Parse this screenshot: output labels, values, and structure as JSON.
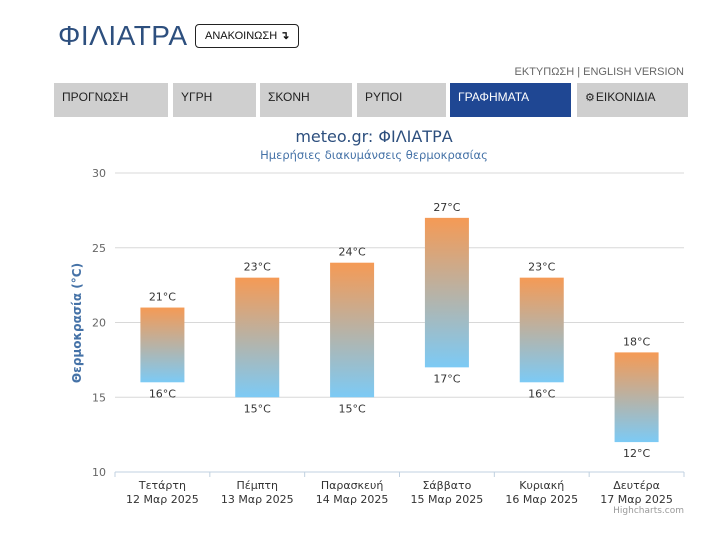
{
  "header": {
    "city": "ΦΙΛΙΑΤΡΑ",
    "announce_label": "ΑΝΑΚΟΙΝΩΣΗ",
    "announce_arrow": "↴",
    "print_label": "ΕΚΤΥΠΩΣΗ",
    "separator": " | ",
    "english_label": "ENGLISH VERSION"
  },
  "tabs": [
    {
      "label": "ΠΡΟΓΝΩΣΗ",
      "icon": "",
      "active": false
    },
    {
      "label": "ΥΓΡΗ",
      "icon": "",
      "active": false
    },
    {
      "label": "ΣΚΟΝΗ",
      "icon": "",
      "active": false
    },
    {
      "label": "ΡΥΠΟΙ",
      "icon": "",
      "active": false
    },
    {
      "label": "ΓΡΑΦΗΜΑΤΑ",
      "icon": "",
      "active": true
    },
    {
      "label": "ΕΙΚΟΝΙΔΙΑ",
      "icon": "gear-icon",
      "active": false
    }
  ],
  "colors": {
    "accent": "#1f4793",
    "city_title": "#2d4f7e",
    "bar_top": "#f59a55",
    "bar_bottom": "#7ccaf5",
    "axis_title": "#4572a7"
  },
  "chart_data": {
    "type": "bar",
    "title": "meteo.gr: ΦΙΛΙΑΤΡΑ",
    "subtitle": "Ημερήσιες διακυμάνσεις θερμοκρασίας",
    "ylabel": "Θερμοκρασία (°C)",
    "ylim": [
      10,
      30
    ],
    "yticks": [
      10,
      15,
      20,
      25,
      30
    ],
    "unit": "°C",
    "categories": [
      {
        "day": "Τετάρτη",
        "date": "12 Μαρ 2025"
      },
      {
        "day": "Πέμπτη",
        "date": "13 Μαρ 2025"
      },
      {
        "day": "Παρασκευή",
        "date": "14 Μαρ 2025"
      },
      {
        "day": "Σάββατο",
        "date": "15 Μαρ 2025"
      },
      {
        "day": "Κυριακή",
        "date": "16 Μαρ 2025"
      },
      {
        "day": "Δευτέρα",
        "date": "17 Μαρ 2025"
      }
    ],
    "series": [
      {
        "min": [
          16,
          15,
          15,
          17,
          16,
          12
        ],
        "max": [
          21,
          23,
          24,
          27,
          23,
          18
        ]
      }
    ],
    "grid": true,
    "credits": "Highcharts.com"
  }
}
